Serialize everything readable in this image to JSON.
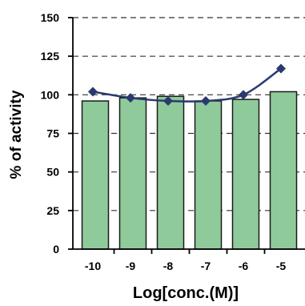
{
  "chart_data": {
    "type": "bar",
    "categories": [
      "-10",
      "-9",
      "-8",
      "-7",
      "-6",
      "-5"
    ],
    "series": [
      {
        "type": "bar",
        "values": [
          96,
          98,
          99,
          96,
          97,
          102
        ]
      },
      {
        "type": "line",
        "values": [
          102,
          98,
          96,
          96,
          100,
          117
        ]
      }
    ],
    "y_ticks": [
      "0",
      "25",
      "50",
      "75",
      "100",
      "125",
      "150"
    ],
    "ylim": [
      0,
      150
    ],
    "xlabel": "Log[conc.(M)]",
    "ylabel": "% of activity",
    "grid": "horizontal-dashed",
    "colors": {
      "bar_fill": "#8fca9b",
      "bar_stroke": "#1a1a1a",
      "line": "#2a3a6e",
      "marker": "#2a3a6e"
    }
  }
}
